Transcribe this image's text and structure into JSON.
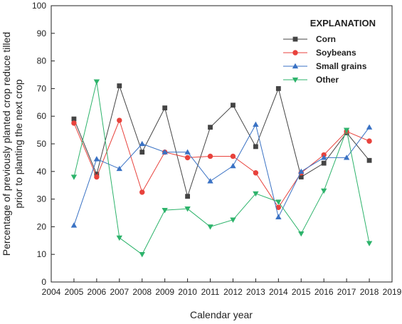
{
  "chart_data": {
    "type": "line",
    "xlabel": "Calendar year",
    "ylabel": [
      "Percentage of previously planted crop reduce tilled",
      "prior to planting the next crop"
    ],
    "xlim": [
      2004,
      2019
    ],
    "ylim": [
      0,
      100
    ],
    "x_ticks": [
      2004,
      2005,
      2006,
      2007,
      2008,
      2009,
      2010,
      2011,
      2012,
      2013,
      2014,
      2015,
      2016,
      2017,
      2018,
      2019
    ],
    "y_ticks": [
      0,
      10,
      20,
      30,
      40,
      50,
      60,
      70,
      80,
      90,
      100
    ],
    "grid": false,
    "legend": {
      "title": "EXPLANATION",
      "placement": "top-right"
    },
    "x": [
      2005,
      2006,
      2007,
      2008,
      2009,
      2010,
      2011,
      2012,
      2013,
      2014,
      2015,
      2016,
      2017,
      2018
    ],
    "series": [
      {
        "name": "Corn",
        "color": "#444444",
        "marker": "square",
        "values": [
          59,
          39,
          71,
          47,
          63,
          31,
          56,
          64,
          49,
          70,
          38,
          43,
          54,
          44
        ]
      },
      {
        "name": "Soybeans",
        "color": "#e8423c",
        "marker": "circle",
        "values": [
          57.5,
          38,
          58.5,
          32.5,
          47,
          45,
          45.5,
          45.5,
          39.5,
          27,
          39.5,
          46,
          54.5,
          51
        ]
      },
      {
        "name": "Small grains",
        "color": "#3a72c4",
        "marker": "triangle-up",
        "values": [
          20.5,
          44.5,
          41,
          50,
          47,
          47,
          36.5,
          42,
          57,
          23.5,
          40,
          45,
          45,
          56
        ]
      },
      {
        "name": "Other",
        "color": "#2db36b",
        "marker": "triangle-down",
        "values": [
          38,
          72.5,
          16,
          10,
          26,
          26.5,
          20,
          22.5,
          32,
          29,
          17.5,
          33,
          55,
          14
        ]
      }
    ]
  }
}
